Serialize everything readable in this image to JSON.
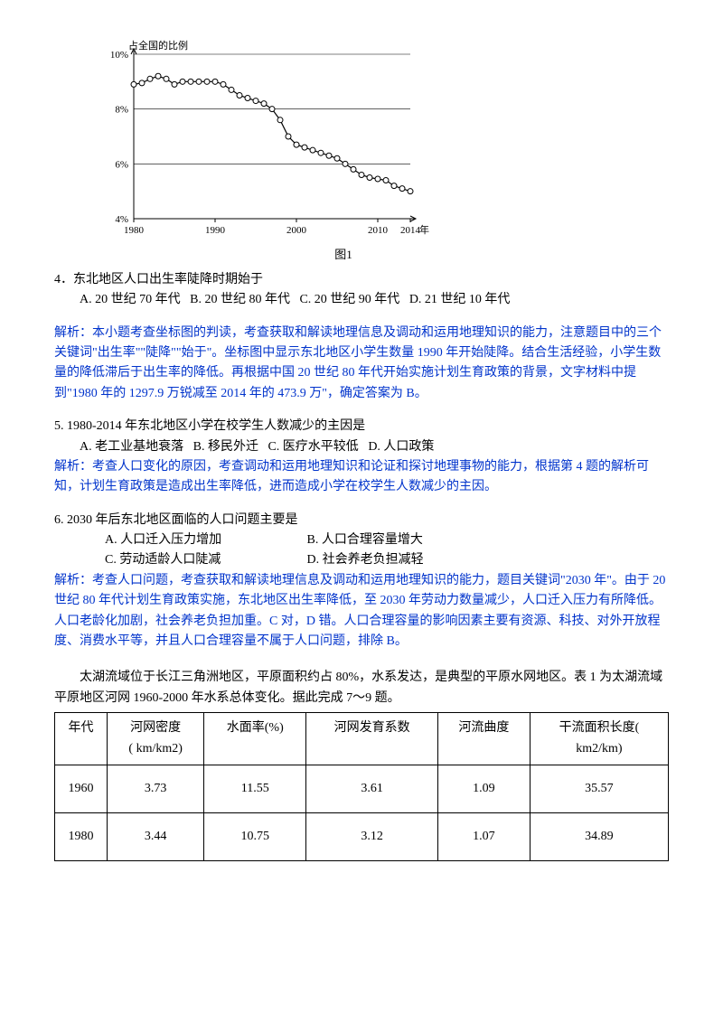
{
  "chart": {
    "type": "line",
    "ylabel": "占全国的比例",
    "xlabel": "年",
    "caption": "图1",
    "ylim": [
      4,
      10
    ],
    "yticks": [
      "4%",
      "6%",
      "8%",
      "10%"
    ],
    "xticks": [
      1980,
      1990,
      2000,
      2010,
      2014
    ],
    "xlim": [
      1980,
      2014
    ],
    "years": [
      1980,
      1981,
      1982,
      1983,
      1984,
      1985,
      1986,
      1987,
      1988,
      1989,
      1990,
      1991,
      1992,
      1993,
      1994,
      1995,
      1996,
      1997,
      1998,
      1999,
      2000,
      2001,
      2002,
      2003,
      2004,
      2005,
      2006,
      2007,
      2008,
      2009,
      2010,
      2011,
      2012,
      2013,
      2014
    ],
    "values": [
      8.9,
      8.95,
      9.1,
      9.2,
      9.1,
      8.9,
      9.0,
      9.0,
      9.0,
      9.0,
      9.0,
      8.9,
      8.7,
      8.5,
      8.4,
      8.3,
      8.2,
      8.0,
      7.6,
      7.0,
      6.7,
      6.6,
      6.5,
      6.4,
      6.3,
      6.2,
      6.0,
      5.8,
      5.6,
      5.5,
      5.45,
      5.4,
      5.2,
      5.1,
      5.0
    ],
    "line_color": "#000000",
    "marker_fill": "#ffffff",
    "marker_stroke": "#000000",
    "marker_radius": 3,
    "line_width": 1.2,
    "grid_color": "#000000",
    "grid_width": 0.6,
    "background": "#ffffff",
    "axis_color": "#000000",
    "font_size": 11
  },
  "q4": {
    "stem": "4．东北地区人口出生率陡降时期始于",
    "optA": "A. 20 世纪 70 年代",
    "optB": "B. 20 世纪 80 年代",
    "optC": "C. 20 世纪 90 年代",
    "optD": "D. 21 世纪 10 年代",
    "analysis": "解析：本小题考查坐标图的判读，考查获取和解读地理信息及调动和运用地理知识的能力，注意题目中的三个关键词\"出生率\"\"陡降\"\"始于\"。坐标图中显示东北地区小学生数量 1990 年开始陡降。结合生活经验，小学生数量的降低滞后于出生率的降低。再根据中国 20 世纪 80 年代开始实施计划生育政策的背景，文字材料中提到\"1980 年的 1297.9 万锐减至 2014 年的 473.9 万\"，确定答案为 B。"
  },
  "q5": {
    "stem": "5. 1980-2014 年东北地区小学在校学生人数减少的主因是",
    "optA": "A. 老工业基地衰落",
    "optB": "B. 移民外迁",
    "optC": "C. 医疗水平较低",
    "optD": "D. 人口政策",
    "analysis": "解析：考查人口变化的原因，考查调动和运用地理知识和论证和探讨地理事物的能力，根据第 4 题的解析可知，计划生育政策是造成出生率降低，进而造成小学在校学生人数减少的主因。"
  },
  "q6": {
    "stem": "6. 2030 年后东北地区面临的人口问题主要是",
    "optA": "A. 人口迁入压力增加",
    "optB": "B. 人口合理容量增大",
    "optC": "C. 劳动适龄人口陡减",
    "optD": "D. 社会养老负担减轻",
    "analysis": "解析：考查人口问题，考查获取和解读地理信息及调动和运用地理知识的能力，题目关键词\"2030 年\"。由于 20 世纪 80 年代计划生育政策实施，东北地区出生率降低，至 2030 年劳动力数量减少，人口迁入压力有所降低。人口老龄化加剧，社会养老负担加重。C 对，D 错。人口合理容量的影响因素主要有资源、科技、对外开放程度、消费水平等，并且人口合理容量不属于人口问题，排除 B。"
  },
  "taihu": {
    "intro": "太湖流域位于长江三角洲地区，平原面积约占 80%，水系发达，是典型的平原水网地区。表 1 为太湖流域平原地区河网 1960-2000 年水系总体变化。据此完成 7～9 题。",
    "columns": [
      "年代",
      "河网密度\n( km/km2)",
      "水面率(%)",
      "河网发育系数",
      "河流曲度",
      "干流面积长度(\nkm2/km)"
    ],
    "rows": [
      [
        "1960",
        "3.73",
        "11.55",
        "3.61",
        "1.09",
        "35.57"
      ],
      [
        "1980",
        "3.44",
        "10.75",
        "3.12",
        "1.07",
        "34.89"
      ]
    ]
  }
}
